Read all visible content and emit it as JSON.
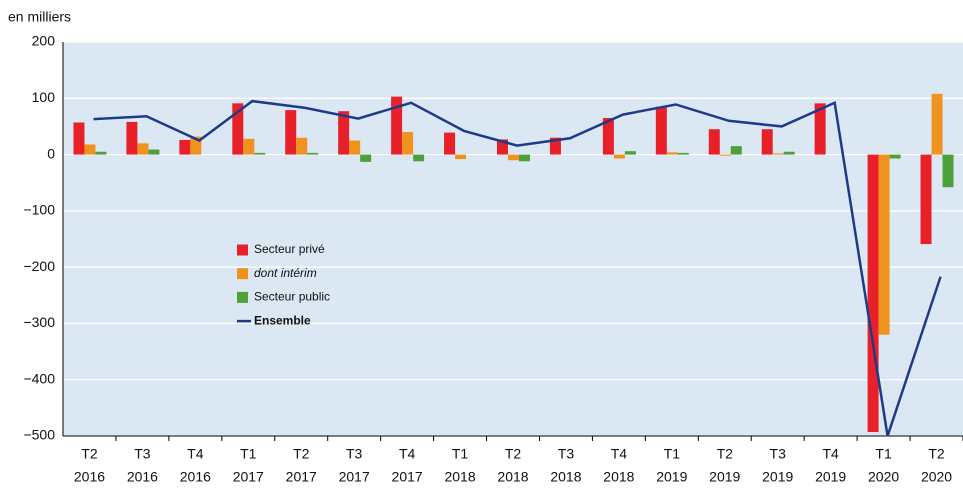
{
  "chart_data": {
    "type": "bar",
    "y_label": "en milliers",
    "categories": [
      [
        "T2",
        "2016"
      ],
      [
        "T3",
        "2016"
      ],
      [
        "T4",
        "2016"
      ],
      [
        "T1",
        "2017"
      ],
      [
        "T2",
        "2017"
      ],
      [
        "T3",
        "2017"
      ],
      [
        "T4",
        "2017"
      ],
      [
        "T1",
        "2018"
      ],
      [
        "T2",
        "2018"
      ],
      [
        "T3",
        "2018"
      ],
      [
        "T4",
        "2018"
      ],
      [
        "T1",
        "2019"
      ],
      [
        "T2",
        "2019"
      ],
      [
        "T3",
        "2019"
      ],
      [
        "T4",
        "2019"
      ],
      [
        "T1",
        "2020"
      ],
      [
        "T2",
        "2020"
      ]
    ],
    "series": [
      {
        "name": "Secteur privé",
        "color": "#e8202a",
        "values": [
          57,
          58,
          26,
          91,
          79,
          77,
          103,
          39,
          27,
          30,
          65,
          85,
          45,
          45,
          91,
          -493,
          -159
        ]
      },
      {
        "name": "dont intérim",
        "color": "#f0931e",
        "values": [
          18,
          20,
          32,
          28,
          30,
          25,
          40,
          -8,
          -10,
          0,
          -7,
          4,
          -2,
          2,
          0,
          -320,
          108
        ]
      },
      {
        "name": "Secteur public",
        "color": "#4ea03a",
        "values": [
          5,
          9,
          0,
          3,
          3,
          -13,
          -12,
          0,
          -12,
          0,
          6,
          3,
          15,
          5,
          0,
          -7,
          -58
        ]
      },
      {
        "name": "Ensemble",
        "color": "#1f3a8a",
        "type": "line",
        "values": [
          63,
          68,
          25,
          95,
          83,
          64,
          92,
          42,
          16,
          29,
          71,
          89,
          60,
          50,
          92,
          -500,
          -217
        ]
      }
    ],
    "ylim": [
      -500,
      200
    ],
    "yticks": [
      {
        "value": -500,
        "label": "−500"
      },
      {
        "value": -400,
        "label": "−400"
      },
      {
        "value": -300,
        "label": "−300"
      },
      {
        "value": -200,
        "label": "−200"
      },
      {
        "value": -100,
        "label": "−100"
      },
      0,
      100,
      200
    ],
    "grid": true,
    "legend": "center-left"
  }
}
